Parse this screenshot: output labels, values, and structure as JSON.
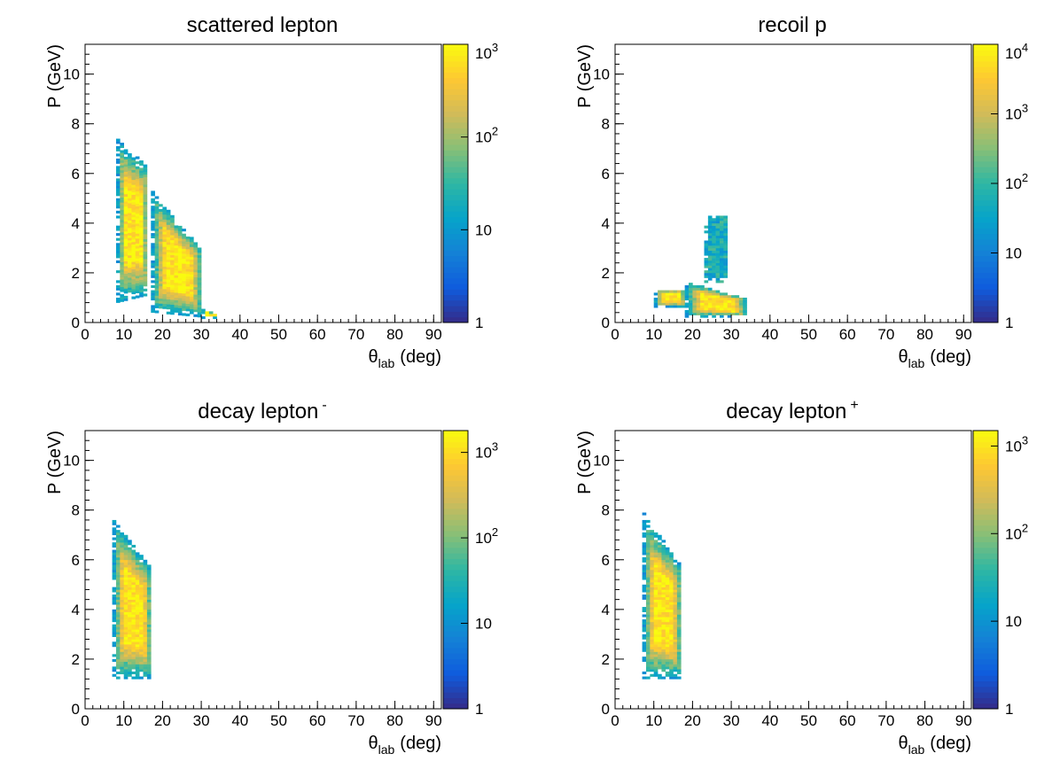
{
  "figure": {
    "colors": {
      "palette": [
        "#352a87",
        "#0f5cdd",
        "#1481d6",
        "#06a4ca",
        "#2eb7a4",
        "#87bf77",
        "#d1bb59",
        "#fec832",
        "#f9fb0e"
      ],
      "axis": "#000000",
      "background": "#ffffff"
    }
  },
  "chart_data": [
    {
      "type": "heatmap",
      "title": "scattered lepton",
      "title_superscript": "",
      "xlabel": "θ",
      "xlabel_sub": "lab",
      "xlabel_unit": "(deg)",
      "ylabel": "P (GeV)",
      "xlim": [
        0,
        92
      ],
      "ylim": [
        0,
        11.2
      ],
      "xticks": [
        0,
        10,
        20,
        30,
        40,
        50,
        60,
        70,
        80,
        90
      ],
      "yticks": [
        0,
        2,
        4,
        6,
        8,
        10
      ],
      "z_scale": "log",
      "zlim": [
        1,
        1000
      ],
      "zticks": [
        {
          "value": 1,
          "label": "1"
        },
        {
          "value": 10,
          "label": "10"
        },
        {
          "value": 100,
          "label": "10",
          "exp": "2"
        },
        {
          "value": 1000,
          "label": "10",
          "exp": "3"
        }
      ],
      "regions": [
        {
          "theta": [
            8,
            16
          ],
          "p_low": [
            0.8,
            1.1
          ],
          "p_high": [
            7.3,
            6.2
          ]
        },
        {
          "theta": [
            17,
            30
          ],
          "p_low": [
            0.4,
            0.2
          ],
          "p_high": [
            5.2,
            2.8
          ]
        },
        {
          "theta": [
            30,
            34
          ],
          "p_low": [
            0.15,
            0.15
          ],
          "p_high": [
            0.5,
            0.25
          ]
        }
      ]
    },
    {
      "type": "heatmap",
      "title": "recoil p",
      "title_superscript": "",
      "xlabel": "θ",
      "xlabel_sub": "lab",
      "xlabel_unit": "(deg)",
      "ylabel": "P (GeV)",
      "xlim": [
        0,
        92
      ],
      "ylim": [
        0,
        11.2
      ],
      "xticks": [
        0,
        10,
        20,
        30,
        40,
        50,
        60,
        70,
        80,
        90
      ],
      "yticks": [
        0,
        2,
        4,
        6,
        8,
        10
      ],
      "z_scale": "log",
      "zlim": [
        1,
        10000
      ],
      "zticks": [
        {
          "value": 1,
          "label": "1"
        },
        {
          "value": 10,
          "label": "10"
        },
        {
          "value": 100,
          "label": "10",
          "exp": "2"
        },
        {
          "value": 1000,
          "label": "10",
          "exp": "3"
        },
        {
          "value": 10000,
          "label": "10",
          "exp": "4"
        }
      ],
      "regions": [
        {
          "theta": [
            10,
            18
          ],
          "p_low": [
            0.6,
            0.6
          ],
          "p_high": [
            1.3,
            1.3
          ]
        },
        {
          "theta": [
            18,
            34
          ],
          "p_low": [
            0.2,
            0.2
          ],
          "p_high": [
            1.6,
            0.9
          ]
        },
        {
          "theta": [
            23,
            29
          ],
          "p_low": [
            1.6,
            1.6
          ],
          "p_high": [
            4.3,
            4.3
          ]
        }
      ]
    },
    {
      "type": "heatmap",
      "title": "decay lepton",
      "title_superscript": "-",
      "xlabel": "θ",
      "xlabel_sub": "lab",
      "xlabel_unit": "(deg)",
      "ylabel": "P (GeV)",
      "xlim": [
        0,
        92
      ],
      "ylim": [
        0,
        11.2
      ],
      "xticks": [
        0,
        10,
        20,
        30,
        40,
        50,
        60,
        70,
        80,
        90
      ],
      "yticks": [
        0,
        2,
        4,
        6,
        8,
        10
      ],
      "z_scale": "log",
      "zlim": [
        1,
        1800
      ],
      "zticks": [
        {
          "value": 1,
          "label": "1"
        },
        {
          "value": 10,
          "label": "10"
        },
        {
          "value": 100,
          "label": "10",
          "exp": "2"
        },
        {
          "value": 1000,
          "label": "10",
          "exp": "3"
        }
      ],
      "regions": [
        {
          "theta": [
            7,
            17
          ],
          "p_low": [
            1.2,
            1.2
          ],
          "p_high": [
            7.6,
            5.5
          ]
        }
      ]
    },
    {
      "type": "heatmap",
      "title": "decay lepton",
      "title_superscript": "+",
      "xlabel": "θ",
      "xlabel_sub": "lab",
      "xlabel_unit": "(deg)",
      "ylabel": "P (GeV)",
      "xlim": [
        0,
        92
      ],
      "ylim": [
        0,
        11.2
      ],
      "xticks": [
        0,
        10,
        20,
        30,
        40,
        50,
        60,
        70,
        80,
        90
      ],
      "yticks": [
        0,
        2,
        4,
        6,
        8,
        10
      ],
      "z_scale": "log",
      "zlim": [
        1,
        1500
      ],
      "zticks": [
        {
          "value": 1,
          "label": "1"
        },
        {
          "value": 10,
          "label": "10"
        },
        {
          "value": 100,
          "label": "10",
          "exp": "2"
        },
        {
          "value": 1000,
          "label": "10",
          "exp": "3"
        }
      ],
      "regions": [
        {
          "theta": [
            7,
            17
          ],
          "p_low": [
            1.2,
            1.2
          ],
          "p_high": [
            7.8,
            5.6
          ]
        }
      ]
    }
  ]
}
